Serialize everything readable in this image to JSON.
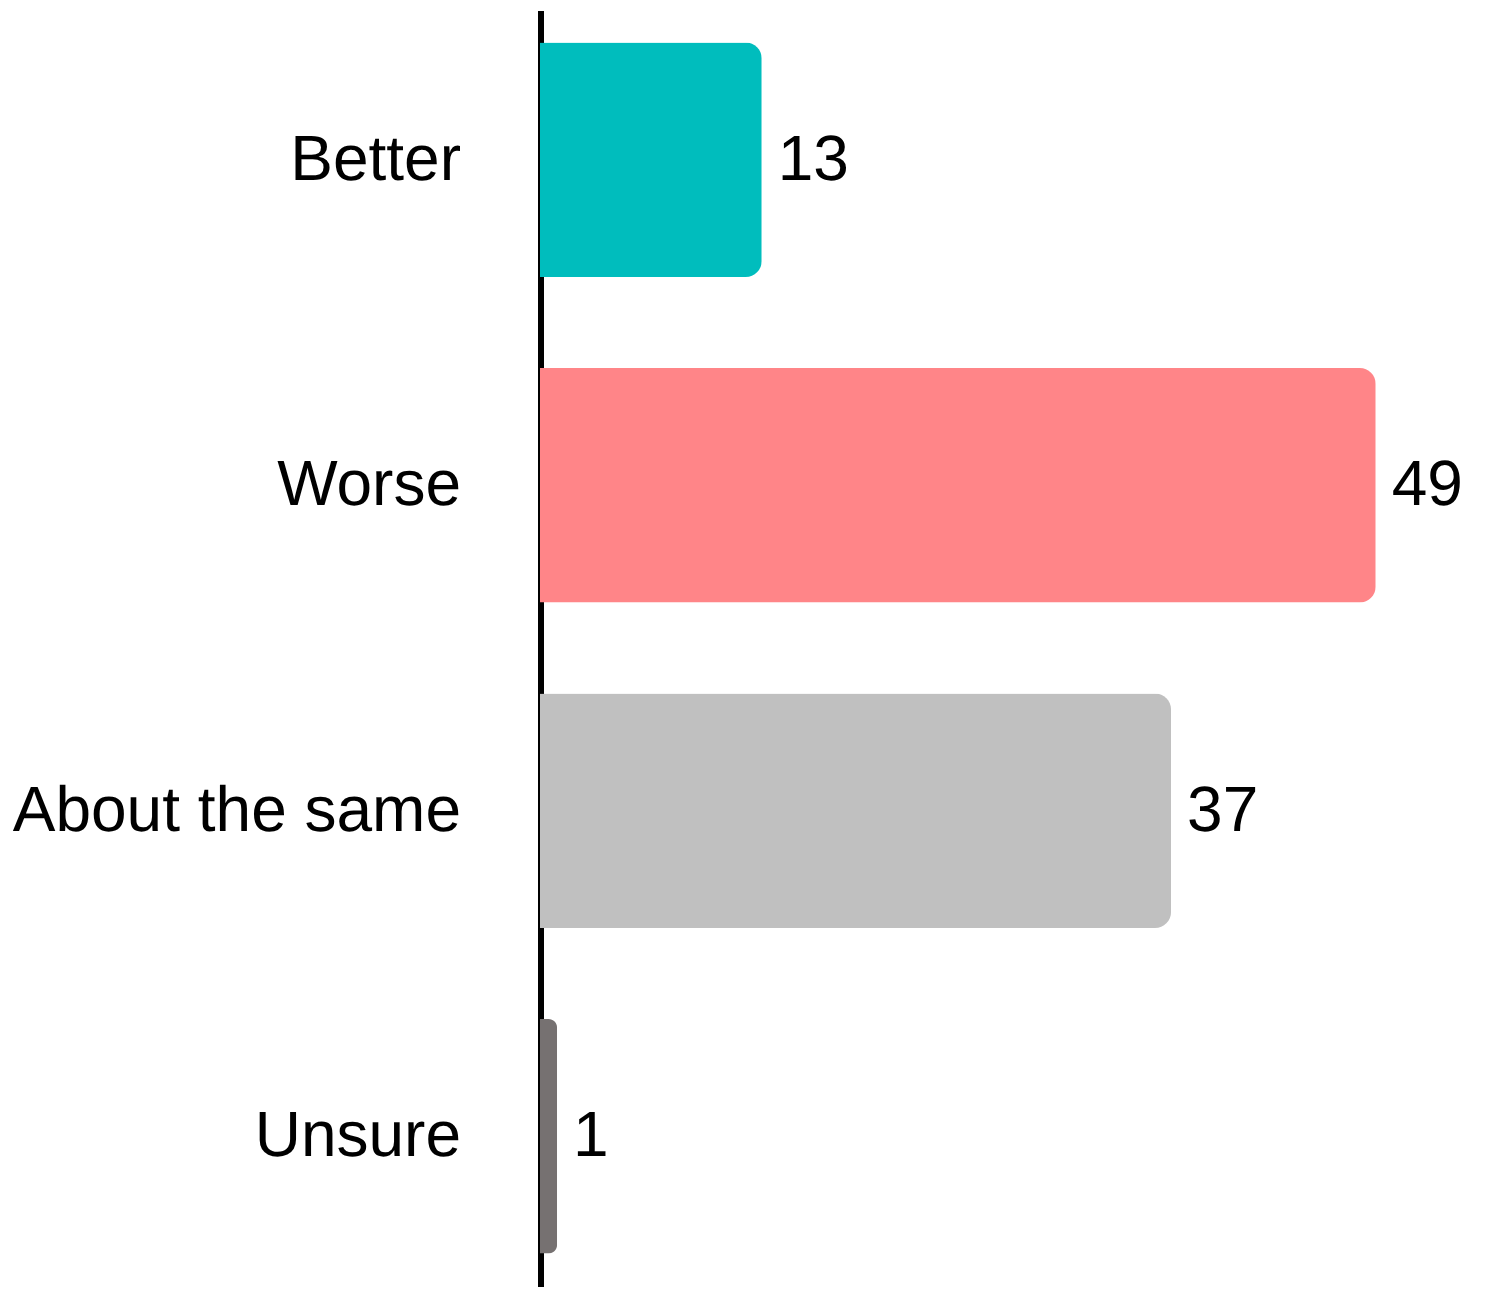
{
  "chart_data": {
    "type": "bar",
    "orientation": "horizontal",
    "categories": [
      "Better",
      "Worse",
      "About the same",
      "Unsure"
    ],
    "values": [
      13,
      49,
      37,
      1
    ],
    "colors": [
      "#00bdbd",
      "#ff8588",
      "#c0c0c0",
      "#767171"
    ],
    "data_labels": true
  }
}
